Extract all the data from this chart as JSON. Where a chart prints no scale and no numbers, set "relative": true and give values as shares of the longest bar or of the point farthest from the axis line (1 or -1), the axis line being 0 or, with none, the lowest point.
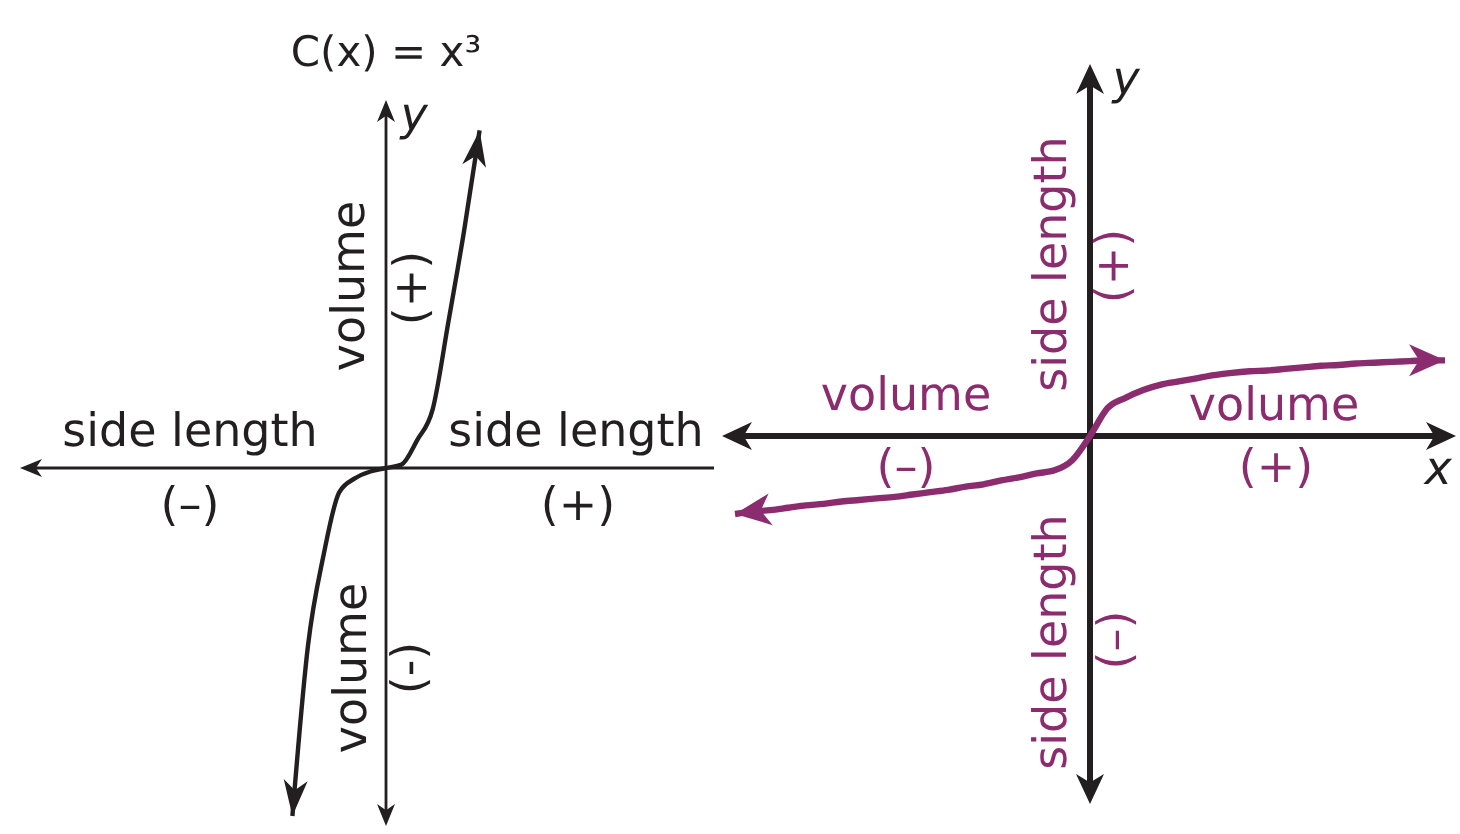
{
  "chart_data": [
    {
      "type": "line",
      "title": "C(x) = x³",
      "ylabel": "y",
      "relative": true,
      "categories": [
        null,
        null,
        null,
        null,
        null,
        null,
        null,
        null,
        null,
        null,
        null,
        null,
        null
      ],
      "series": [
        {
          "color": "#231f20",
          "values": [
            -1,
            -0.51,
            -0.25,
            -0.07,
            -0.03,
            -0.01,
            0,
            0.01,
            0.08,
            0.17,
            0.42,
            0.68,
            0.97
          ]
        }
      ],
      "annotations": [
        "volume",
        "(+)",
        "side length",
        "side length",
        "(–)",
        "(+)",
        "volume",
        "(-)"
      ]
    },
    {
      "type": "line",
      "xlabel": "x",
      "ylabel": "y",
      "relative": true,
      "categories": [
        null,
        null,
        null,
        null,
        null,
        null,
        null,
        null,
        null,
        null,
        null,
        null,
        null,
        null,
        null,
        null,
        null,
        null,
        null,
        null,
        null,
        null,
        null,
        null,
        null,
        null,
        null,
        null,
        null,
        null,
        null,
        null,
        null,
        null,
        null,
        null,
        null,
        null,
        null,
        null,
        null
      ],
      "series": [
        {
          "color": "#8b2c6e",
          "values": [
            -1,
            -0.97,
            -0.95,
            -0.92,
            -0.89,
            -0.87,
            -0.84,
            -0.82,
            -0.8,
            -0.78,
            -0.75,
            -0.72,
            -0.69,
            -0.65,
            -0.62,
            -0.57,
            -0.53,
            -0.48,
            -0.44,
            -0.31,
            0,
            0.36,
            0.49,
            0.59,
            0.66,
            0.7,
            0.74,
            0.78,
            0.81,
            0.83,
            0.84,
            0.86,
            0.88,
            0.9,
            0.91,
            0.93,
            0.94,
            0.95,
            0.96,
            0.97,
            0.97
          ]
        }
      ],
      "annotations": [
        "side length",
        "(+)",
        "volume",
        "volume",
        "(–)",
        "(+)",
        "side length",
        "(–)"
      ]
    }
  ]
}
